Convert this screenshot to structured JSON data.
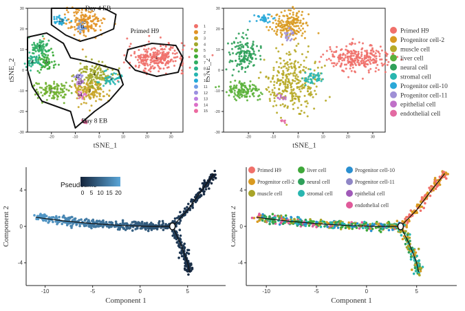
{
  "chart_data": [
    {
      "type": "scatter",
      "panel": "tsne-clusters",
      "xlabel": "tSNE_1",
      "ylabel": "tSNE_2",
      "xticks": [
        -20,
        -10,
        0,
        10,
        20,
        30
      ],
      "yticks": [
        -30,
        -20,
        -10,
        0,
        10,
        20,
        30
      ],
      "xlim": [
        -30,
        35
      ],
      "ylim": [
        -30,
        30
      ],
      "grid": false,
      "annotations": [
        {
          "text": "Day 4 EB",
          "x": -0.5,
          "y": 29
        },
        {
          "text": "Primed H9",
          "x": 19,
          "y": 18
        },
        {
          "text": "Day 8 EB",
          "x": -2,
          "y": -25.5
        }
      ],
      "legend_title": "",
      "legend_placement": "right",
      "series": [
        {
          "name": "1",
          "color": "#f0706a",
          "center": [
            24,
            6
          ],
          "label_at": [
            24,
            6
          ]
        },
        {
          "name": "2",
          "color": "#e29224",
          "center": [
            -6,
            23
          ],
          "label_at": [
            -6,
            23
          ]
        },
        {
          "name": "3",
          "color": "#c9a62a",
          "center": [
            -4,
            -10
          ],
          "label_at": [
            -4,
            -10
          ]
        },
        {
          "name": "4",
          "color": "#a1a82a",
          "center": [
            -2,
            -2
          ],
          "label_at": [
            -2,
            -2
          ]
        },
        {
          "name": "5",
          "color": "#6fb02f",
          "center": [
            -20,
            -10
          ],
          "label_at": [
            -20,
            -10
          ]
        },
        {
          "name": "6",
          "color": "#3aab38",
          "center": [
            -22,
            4
          ],
          "label_at": [
            -22,
            4
          ]
        },
        {
          "name": "7",
          "color": "#2fae62",
          "center": [
            -25,
            11
          ],
          "label_at": [
            -25,
            11
          ]
        },
        {
          "name": "8",
          "color": "#2cb28c",
          "center": [
            -28,
            4
          ],
          "label_at": [
            -28,
            4
          ]
        },
        {
          "name": "9",
          "color": "#25b5b0",
          "center": [
            5,
            -4
          ],
          "label_at": [
            5,
            -4
          ]
        },
        {
          "name": "10",
          "color": "#22aad8",
          "center": [
            -16,
            24
          ],
          "label_at": [
            -16,
            24
          ]
        },
        {
          "name": "11",
          "color": "#6f9ee6",
          "center": [
            -7,
            21
          ],
          "label_at": [
            -7,
            21
          ]
        },
        {
          "name": "12",
          "color": "#9b8fe0",
          "center": [
            -9,
            -3
          ],
          "label_at": [
            -9,
            -3
          ]
        },
        {
          "name": "13",
          "color": "#bc7fe0",
          "center": [
            -8,
            -6
          ],
          "label_at": [
            -8,
            -6
          ]
        },
        {
          "name": "14",
          "color": "#db6fc8",
          "center": [
            -8,
            -12
          ],
          "label_at": [
            -8,
            -12
          ]
        },
        {
          "name": "15",
          "color": "#ec6aa0",
          "center": [
            -6,
            -25
          ],
          "label_at": [
            -6,
            -25
          ]
        }
      ]
    },
    {
      "type": "scatter",
      "panel": "tsne-celltypes",
      "xlabel": "tSNE_1",
      "ylabel": "tSNE_2",
      "xticks": [
        -20,
        -10,
        0,
        10,
        20,
        30
      ],
      "yticks": [
        -30,
        -20,
        -10,
        0,
        10,
        20,
        30
      ],
      "xlim": [
        -30,
        35
      ],
      "ylim": [
        -30,
        30
      ],
      "grid": false,
      "legend_placement": "right",
      "series": [
        {
          "name": "Primed H9",
          "color": "#f0706a",
          "center": [
            24,
            6
          ]
        },
        {
          "name": "Progenitor cell-2",
          "color": "#d99a20",
          "center": [
            -3,
            22
          ]
        },
        {
          "name": "muscle cell",
          "color": "#b7aa27",
          "center": [
            -2,
            -6
          ]
        },
        {
          "name": "liver cell",
          "color": "#5bb13a",
          "center": [
            -22,
            -10
          ]
        },
        {
          "name": "neural cell",
          "color": "#2fa05a",
          "center": [
            -22,
            8
          ]
        },
        {
          "name": "stromal cell",
          "color": "#28b6b0",
          "center": [
            5,
            -4
          ]
        },
        {
          "name": "Progenitor cell-10",
          "color": "#2aa8d8",
          "center": [
            -14,
            25
          ]
        },
        {
          "name": "Progenitor cell-11",
          "color": "#9f8fd6",
          "center": [
            -4,
            17
          ]
        },
        {
          "name": "epithelial cell",
          "color": "#c070c8",
          "center": [
            -7,
            -13
          ]
        },
        {
          "name": "endothelial cell",
          "color": "#e36aa2",
          "center": [
            -6,
            -25
          ]
        }
      ]
    },
    {
      "type": "scatter",
      "panel": "trajectory-pseudotime",
      "xlabel": "Component 1",
      "ylabel": "Component 2",
      "xticks": [
        -10,
        -5,
        0,
        5
      ],
      "yticks": [
        -4,
        0,
        4
      ],
      "xlim": [
        -12,
        9
      ],
      "ylim": [
        -6.5,
        6.5
      ],
      "grid": false,
      "colorbar": {
        "title": "Pseudotime",
        "ticks": [
          "0",
          "5",
          "10",
          "15",
          "20"
        ],
        "low_color": "#14233a",
        "high_color": "#5aa6d8"
      },
      "branch_point": [
        3.4,
        0
      ],
      "trajectory": {
        "trunk": [
          [
            -11,
            1.0
          ],
          [
            -8,
            0.6
          ],
          [
            -5,
            0.3
          ],
          [
            -2,
            0.1
          ],
          [
            1,
            0.0
          ],
          [
            3.4,
            0
          ]
        ],
        "upper_branch": [
          [
            3.4,
            0
          ],
          [
            5,
            1.8
          ],
          [
            6.5,
            4.0
          ],
          [
            7.8,
            5.8
          ]
        ],
        "lower_branch": [
          [
            3.4,
            0
          ],
          [
            4.3,
            -2.0
          ],
          [
            5.0,
            -4.0
          ],
          [
            5.2,
            -5.0
          ]
        ]
      },
      "pseudotime_range": [
        0,
        22
      ]
    },
    {
      "type": "scatter",
      "panel": "trajectory-celltypes",
      "xlabel": "Component 1",
      "ylabel": "Component 2",
      "xticks": [
        -10,
        -5,
        0,
        5
      ],
      "yticks": [
        -4,
        0,
        4
      ],
      "xlim": [
        -12,
        9
      ],
      "ylim": [
        -6.5,
        6.5
      ],
      "grid": false,
      "legend_placement": "top",
      "branch_point": [
        3.4,
        0
      ],
      "series": [
        {
          "name": "Primed H9",
          "color": "#f0706a"
        },
        {
          "name": "liver cell",
          "color": "#3fa83a"
        },
        {
          "name": "Progenitor cell-10",
          "color": "#2a8fd0"
        },
        {
          "name": "Progenitor cell-2",
          "color": "#d99a20"
        },
        {
          "name": "neural cell",
          "color": "#2fa05a"
        },
        {
          "name": "Progenitor  cell-11",
          "color": "#8f86c6"
        },
        {
          "name": "muscle cell",
          "color": "#a8a428"
        },
        {
          "name": "stromal cell",
          "color": "#28b6b0"
        },
        {
          "name": "epithelial cell",
          "color": "#a05ab8"
        },
        {
          "name": "endothelial cell",
          "color": "#e05a9a"
        }
      ]
    }
  ]
}
